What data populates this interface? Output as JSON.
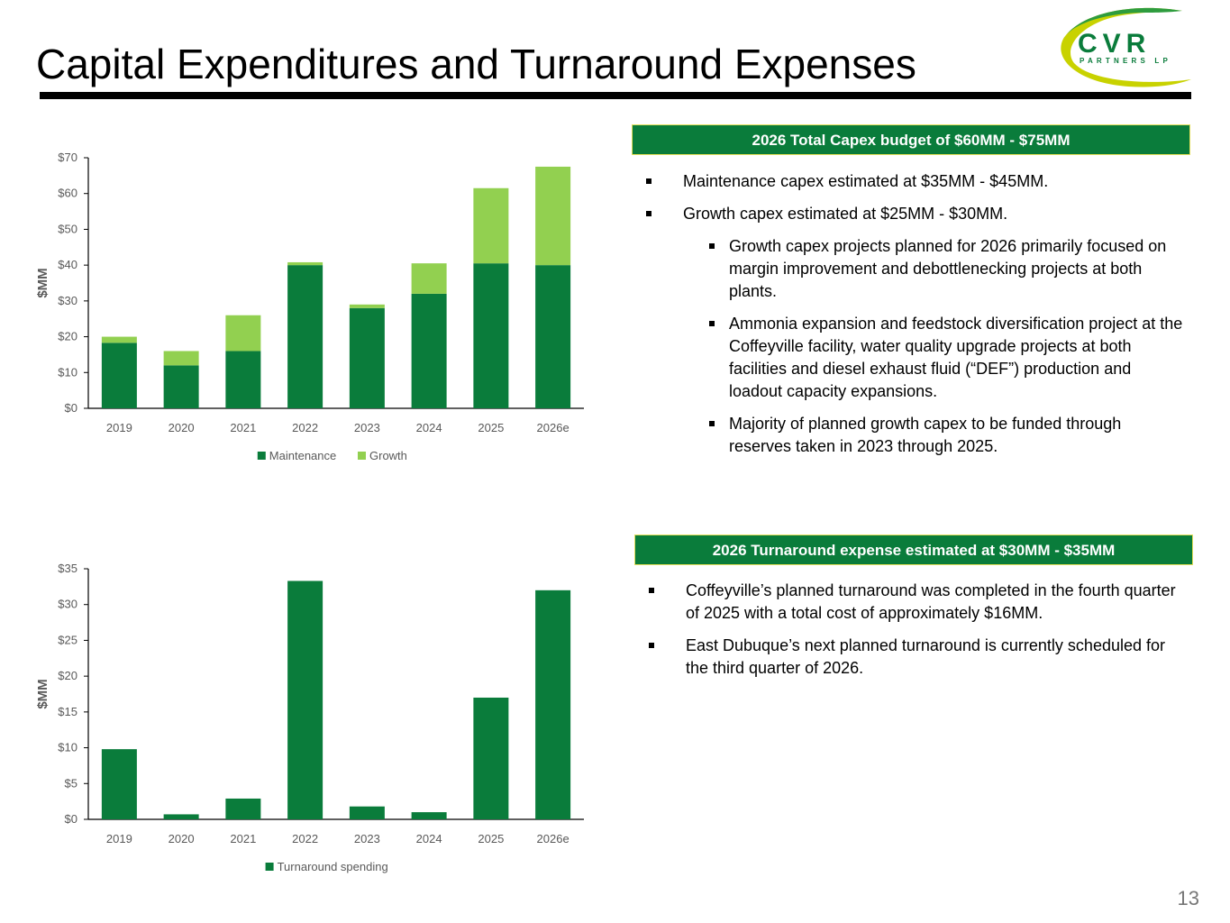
{
  "title": "Capital Expenditures and Turnaround Expenses",
  "logo": {
    "brand": "CVR",
    "subtitle": "PARTNERS LP"
  },
  "page_number": "13",
  "colors": {
    "dark_green": "#0a7c3b",
    "light_green": "#92d050",
    "banner_border": "#e3df5a"
  },
  "capex_panel": {
    "banner": "2026 Total Capex budget of $60MM - $75MM",
    "bullets": [
      {
        "level": 1,
        "text": "Maintenance capex estimated at $35MM - $45MM."
      },
      {
        "level": 1,
        "text": "Growth capex estimated at $25MM - $30MM."
      },
      {
        "level": 2,
        "text": "Growth capex projects planned for 2026 primarily focused on margin improvement and debottlenecking projects at both plants."
      },
      {
        "level": 2,
        "text": "Ammonia expansion and feedstock diversification project at the Coffeyville facility, water quality upgrade projects at both facilities and diesel exhaust fluid (“DEF”) production and loadout capacity expansions."
      },
      {
        "level": 2,
        "text": "Majority of planned growth capex to be funded through reserves taken in 2023 through 2025."
      }
    ]
  },
  "turnaround_panel": {
    "banner": "2026 Turnaround expense estimated at $30MM - $35MM",
    "bullets": [
      {
        "level": 1,
        "text": "Coffeyville’s planned turnaround was completed in the fourth quarter of 2025 with a total cost of approximately $16MM."
      },
      {
        "level": 1,
        "text": "East Dubuque’s next planned turnaround is currently scheduled for the third quarter of 2026."
      }
    ]
  },
  "chart_data": [
    {
      "type": "bar",
      "stacked": true,
      "categories": [
        "2019",
        "2020",
        "2021",
        "2022",
        "2023",
        "2024",
        "2025",
        "2026e"
      ],
      "series": [
        {
          "name": "Maintenance",
          "color": "#0a7c3b",
          "values": [
            18.3,
            12,
            16,
            40,
            28,
            32,
            40.5,
            40
          ]
        },
        {
          "name": "Growth",
          "color": "#92d050",
          "values": [
            1.7,
            4,
            10,
            0.8,
            1,
            8.5,
            21,
            27.5
          ]
        }
      ],
      "ylabel": "$MM",
      "ylim": [
        0,
        70
      ],
      "yticks": [
        "$0",
        "$10",
        "$20",
        "$30",
        "$40",
        "$50",
        "$60",
        "$70"
      ],
      "ytick_values": [
        0,
        10,
        20,
        30,
        40,
        50,
        60,
        70
      ],
      "legend": "bottom",
      "grid": false
    },
    {
      "type": "bar",
      "stacked": false,
      "categories": [
        "2019",
        "2020",
        "2021",
        "2022",
        "2023",
        "2024",
        "2025",
        "2026e"
      ],
      "series": [
        {
          "name": "Turnaround spending",
          "color": "#0a7c3b",
          "values": [
            9.8,
            0.7,
            2.9,
            33.3,
            1.8,
            1,
            17,
            32
          ]
        }
      ],
      "ylabel": "$MM",
      "ylim": [
        0,
        35
      ],
      "yticks": [
        "$0",
        "$5",
        "$10",
        "$15",
        "$20",
        "$25",
        "$30",
        "$35"
      ],
      "ytick_values": [
        0,
        5,
        10,
        15,
        20,
        25,
        30,
        35
      ],
      "legend": "bottom",
      "grid": false
    }
  ]
}
